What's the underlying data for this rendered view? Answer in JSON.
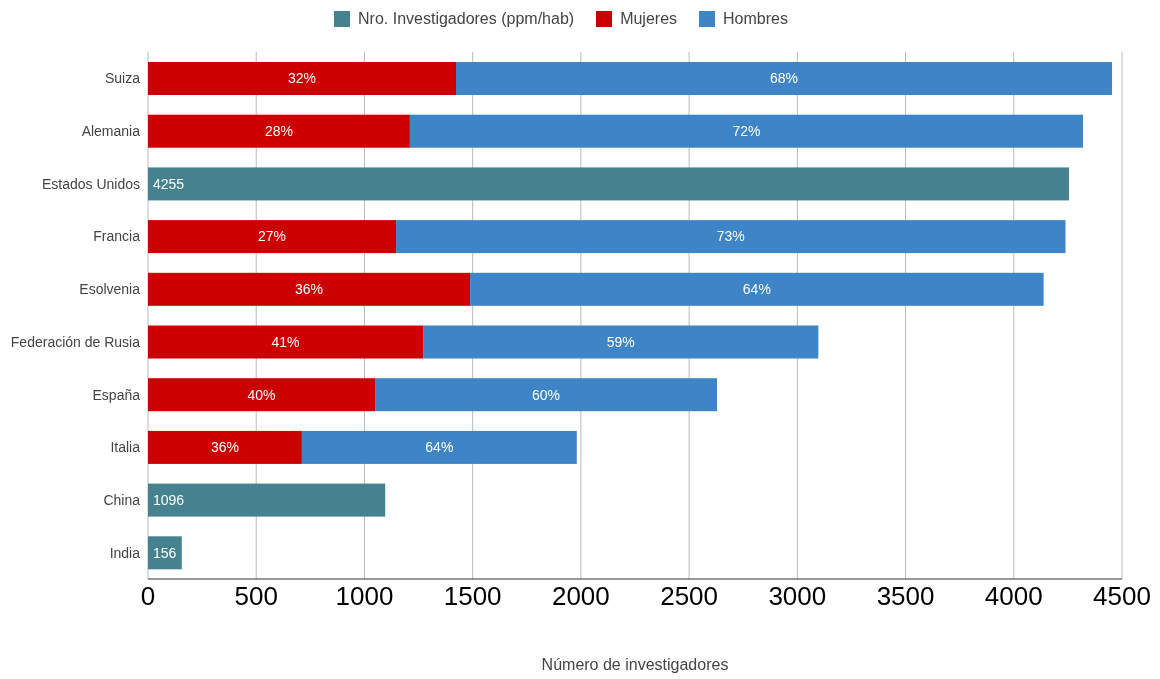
{
  "chart_data": {
    "type": "bar",
    "orientation": "horizontal",
    "stacked": true,
    "xlabel": "Número de investigadores",
    "categories": [
      "Suiza",
      "Alemania",
      "Estados Unidos",
      "Francia",
      "Esolvenia",
      "Federación de Rusia",
      "España",
      "Italia",
      "China",
      "India"
    ],
    "series": [
      {
        "name": "Nro. Investigadores (ppm/hab)",
        "color": "#45818e",
        "values": [
          null,
          null,
          4255,
          null,
          null,
          null,
          null,
          null,
          1096,
          156
        ],
        "value_labels": [
          null,
          null,
          "4255",
          null,
          null,
          null,
          null,
          null,
          "1096",
          "156"
        ]
      },
      {
        "name": "Mujeres",
        "color": "#cc0000",
        "values": [
          1423,
          1210,
          null,
          1146,
          1488,
          1271,
          1049,
          711,
          null,
          null
        ]
      },
      {
        "name": "Hombres",
        "color": "#3d85c6",
        "values": [
          3031,
          3110,
          null,
          3093,
          2650,
          1826,
          1580,
          1270,
          null,
          null
        ]
      }
    ],
    "annotations": [
      "32%",
      "68%",
      "28%",
      "72%",
      "27%",
      "73%",
      "36%",
      "64%",
      "41%",
      "59%",
      "40%",
      "60%",
      "36%",
      "64%"
    ],
    "xlim": [
      0,
      4500
    ],
    "xticks": [
      0,
      500,
      1000,
      1500,
      2000,
      2500,
      3000,
      3500,
      4000,
      4500
    ],
    "grid": "x",
    "legend": "top"
  }
}
